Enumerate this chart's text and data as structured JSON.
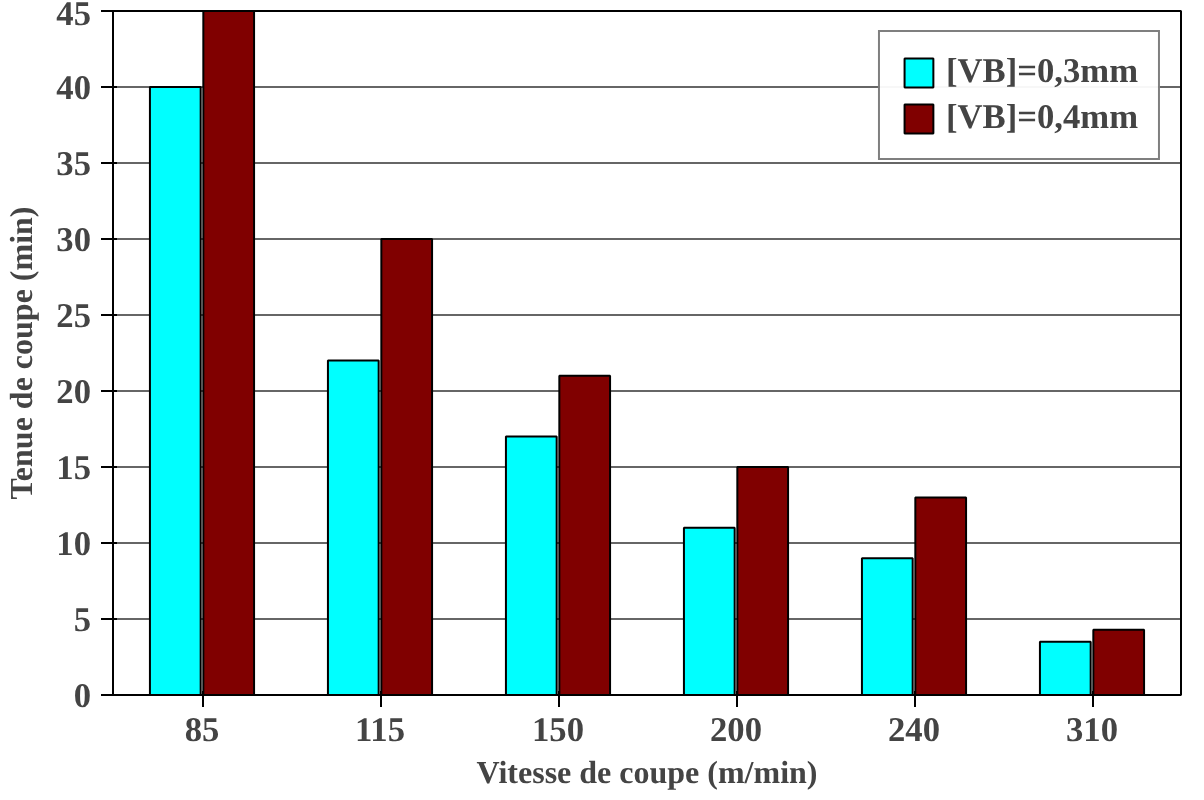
{
  "chart_data": {
    "type": "bar",
    "xlabel": "Vitesse de coupe (m/min)",
    "ylabel": "Tenue de coupe (min)",
    "categories": [
      "85",
      "115",
      "150",
      "200",
      "240",
      "310"
    ],
    "series": [
      {
        "name": "[VB]=0,3mm",
        "color": "#00ffff",
        "values": [
          40,
          22,
          17,
          11,
          9,
          3.5
        ]
      },
      {
        "name": "[VB]=0,4mm",
        "color": "#800000",
        "values": [
          45,
          30,
          21,
          15,
          13,
          4.3
        ]
      }
    ],
    "ylim": [
      0,
      45
    ],
    "yticks": [
      0,
      5,
      10,
      15,
      20,
      25,
      30,
      35,
      40,
      45
    ],
    "grid": "y",
    "legend": "top right"
  }
}
